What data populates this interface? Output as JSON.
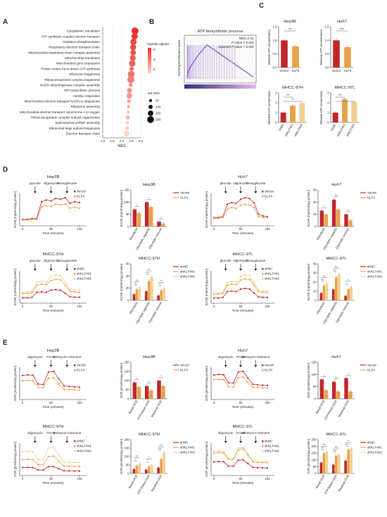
{
  "panel_labels": {
    "A": "A",
    "B": "B",
    "C": "C",
    "D": "D",
    "E": "E"
  },
  "colors": {
    "red": "#c0272d",
    "orange": "#e8a24a",
    "light_orange": "#f4cf93",
    "pale": "#fae6c3",
    "dot_low": "#fbd3c3",
    "dot_high": "#e5322d",
    "gsea_line": "#7b52c7",
    "gsea_dark": "#3a2a7a",
    "gsea_light": "#e0b8e8"
  },
  "chart_data": [
    {
      "id": "A",
      "type": "scatter",
      "xlabel": "NES",
      "xlim": [
        1.0,
        3.0
      ],
      "xticks": [
        "1.0",
        "1.5",
        "2.0",
        "2.5",
        "3.0"
      ],
      "categories": [
        "Cytoplasmic translation",
        "ATP synthesis coupled electron transport",
        "Oxidative phosphorylation",
        "Respiratory electron transport chain",
        "Mitochondrial respiratory chain complex assembly",
        "Mitochondrial translation",
        "Mitochondrial gene expression",
        "Proton motive force driven ATP synthesis",
        "Ribosome biogenesis",
        "Ribonucleoprotein complex biogenesis",
        "NADH dehydrogenase complex assembly",
        "ATP biosynthetic process",
        "Aerobic respiration",
        "Mitochondrial electron transport NADH to ubiquinone",
        "Ribosome assembly",
        "Mitochondrial electron transport cytochrome c to oxygen",
        "Ribonucleoprotein complex subunit organization",
        "Spliceosomal snRNP assembly",
        "Ribosomal large subunit biogenesis",
        "Electron transport chain"
      ],
      "x": [
        2.7,
        2.68,
        2.62,
        2.6,
        2.6,
        2.58,
        2.55,
        2.52,
        2.5,
        2.48,
        2.47,
        2.41,
        2.4,
        2.38,
        2.36,
        2.34,
        2.32,
        2.3,
        2.28,
        2.25
      ],
      "size": [
        210,
        180,
        175,
        170,
        150,
        160,
        190,
        100,
        200,
        210,
        80,
        120,
        160,
        80,
        60,
        40,
        100,
        50,
        80,
        150
      ],
      "color_legend_title": "-log10(p.adjust)",
      "color_ticks": [
        "8",
        "6",
        "4"
      ],
      "size_legend_title": "set Size",
      "size_ticks": [
        "50",
        "100",
        "150",
        "200"
      ]
    },
    {
      "id": "B",
      "type": "line",
      "title": "ATP biosynthetic process",
      "ylabel": "Running Enrichment Score",
      "annotations": [
        "NES=2.41",
        "P value < 0.001",
        "Adjusted P value < 0.001"
      ]
    },
    {
      "id": "C1",
      "type": "bar",
      "title": "Hep3B",
      "ylabel": "Relative ATP concentration",
      "categories": [
        "Vector",
        "KLF4"
      ],
      "values": [
        1.0,
        0.78
      ],
      "ylim": [
        0,
        1.5
      ],
      "yticks": [
        "0.0",
        "0.5",
        "1.0",
        "1.5"
      ],
      "sig": [
        "***"
      ]
    },
    {
      "id": "C2",
      "type": "bar",
      "title": "Huh7",
      "ylabel": "Relative ATP concentration",
      "categories": [
        "Vector",
        "KLF4"
      ],
      "values": [
        1.0,
        0.75
      ],
      "ylim": [
        0,
        1.5
      ],
      "yticks": [
        "0.0",
        "0.5",
        "1.0",
        "1.5"
      ],
      "sig": [
        "****"
      ]
    },
    {
      "id": "C3",
      "type": "bar",
      "title": "MHCC-97H",
      "ylabel": "Relative ATP concentratio",
      "categories": [
        "shNC",
        "shKLF4#1",
        "shKLF4#2"
      ],
      "values": [
        1.0,
        1.7,
        1.95
      ],
      "ylim": [
        0,
        3
      ],
      "yticks": [
        "0",
        "1",
        "2",
        "3"
      ],
      "sig": [
        "***",
        "**"
      ]
    },
    {
      "id": "C4",
      "type": "bar",
      "title": "MHCC-97L",
      "ylabel": "Relative ATP concentratio",
      "categories": [
        "shNC",
        "shKLF4#1",
        "shKLF4#2"
      ],
      "values": [
        1.0,
        2.3,
        2.1
      ],
      "ylim": [
        0,
        3
      ],
      "yticks": [
        "0",
        "1",
        "2",
        "3"
      ],
      "sig": [
        "***",
        "***"
      ]
    },
    {
      "id": "D1",
      "type": "line",
      "title": "Hep3B",
      "ylabel": "ECAR (mpH/min/μg protein)",
      "xlabel": "Time (minutes)",
      "xticks": [
        "0",
        "50",
        "100"
      ],
      "injections": [
        "glucose",
        "oligomycin",
        "deoxyglucose"
      ],
      "series": [
        {
          "name": "Vector",
          "values": [
            8,
            8,
            9,
            9,
            30,
            32,
            31,
            34,
            33,
            35,
            28,
            30,
            29
          ]
        },
        {
          "name": "KLF4",
          "values": [
            7,
            7,
            8,
            8,
            24,
            25,
            24,
            27,
            26,
            27,
            22,
            23,
            22
          ]
        }
      ]
    },
    {
      "id": "D2",
      "type": "bar",
      "title": "Hep3B",
      "ylabel": "ECAR (mpH/min/μg protein)",
      "categories": [
        "Glycolysis",
        "Glycolytic capacity",
        "Glycolytic reserve"
      ],
      "series": [
        {
          "name": "Vector",
          "values": [
            70,
            100,
            20
          ]
        },
        {
          "name": "KLF4",
          "values": [
            55,
            80,
            12
          ]
        }
      ],
      "ylim": [
        0,
        150
      ],
      "yticks": [
        "0",
        "50",
        "100",
        "150"
      ],
      "sig": [
        "*",
        "*",
        "*"
      ]
    },
    {
      "id": "D3",
      "type": "line",
      "title": "Huh7",
      "ylabel": "ECAR (mpH/min/μg protein)",
      "xlabel": "Time (minutes)",
      "xticks": [
        "0",
        "50",
        "100"
      ],
      "injections": [
        "glucose",
        "oligomycin",
        "deoxyglucose"
      ],
      "series": [
        {
          "name": "Vector",
          "values": [
            10,
            10,
            11,
            26,
            28,
            27,
            32,
            34,
            33,
            28,
            14,
            12,
            11
          ]
        },
        {
          "name": "KLF4",
          "values": [
            9,
            9,
            10,
            20,
            22,
            21,
            25,
            26,
            25,
            22,
            11,
            10,
            10
          ]
        }
      ]
    },
    {
      "id": "D4",
      "type": "bar",
      "title": "Huh7",
      "ylabel": "ECAR (mpH/min/μg protein)",
      "categories": [
        "Glycolysis",
        "Glycolytic capacity",
        "Glycolytic reserve"
      ],
      "series": [
        {
          "name": "Vector",
          "values": [
            13,
            22,
            10
          ]
        },
        {
          "name": "KLF4",
          "values": [
            10,
            14,
            5
          ]
        }
      ],
      "ylim": [
        0,
        30
      ],
      "yticks": [
        "0",
        "10",
        "20",
        "30"
      ],
      "sig": [
        "*",
        "**",
        "*"
      ]
    },
    {
      "id": "D5",
      "type": "line",
      "title": "MHCC-97H",
      "ylabel": "ECAR (mpH/min/μg protein)",
      "xlabel": "Time (minutes)",
      "xticks": [
        "0",
        "50",
        "100"
      ],
      "injections": [
        "glucose",
        "oligomycin",
        "deoxyglucose"
      ],
      "series": [
        {
          "name": "shNC",
          "values": [
            10,
            10,
            11,
            20,
            21,
            20,
            24,
            25,
            24,
            18,
            12,
            11,
            11
          ]
        },
        {
          "name": "shKLF4#1",
          "values": [
            18,
            18,
            19,
            33,
            35,
            34,
            42,
            44,
            43,
            33,
            22,
            21,
            20
          ]
        },
        {
          "name": "shKLF4#2",
          "values": [
            20,
            21,
            22,
            38,
            40,
            39,
            50,
            52,
            51,
            38,
            26,
            25,
            24
          ]
        }
      ]
    },
    {
      "id": "D6",
      "type": "bar",
      "title": "MHCC-97H",
      "ylabel": "ECAR (mpH/min/μg protein)",
      "categories": [
        "Glycolysis",
        "Glycolytic capacity",
        "Glycolytic reserve"
      ],
      "series": [
        {
          "name": "shNC",
          "values": [
            10,
            15,
            8
          ]
        },
        {
          "name": "shKLF4#1",
          "values": [
            18,
            32,
            16
          ]
        },
        {
          "name": "shKLF4#2",
          "values": [
            20,
            38,
            19
          ]
        }
      ],
      "ylim": [
        0,
        60
      ],
      "yticks": [
        "0",
        "20",
        "40",
        "60"
      ],
      "sig": [
        "**",
        "**",
        "***",
        "**",
        "**",
        "**"
      ]
    },
    {
      "id": "D7",
      "type": "line",
      "title": "MHCC-97L",
      "ylabel": "ECAR (mpH/min/μg protein)",
      "xlabel": "Time (minutes)",
      "xticks": [
        "0",
        "50",
        "100"
      ],
      "injections": [
        "glucose",
        "oligomycin",
        "deoxyglucose"
      ],
      "series": [
        {
          "name": "shNC",
          "values": [
            8,
            8,
            9,
            18,
            19,
            18,
            22,
            23,
            22,
            16,
            10,
            9,
            9
          ]
        },
        {
          "name": "shKLF4#1",
          "values": [
            14,
            14,
            15,
            28,
            30,
            29,
            36,
            38,
            37,
            28,
            18,
            17,
            17
          ]
        },
        {
          "name": "shKLF4#2",
          "values": [
            16,
            16,
            17,
            32,
            34,
            33,
            42,
            44,
            43,
            32,
            20,
            19,
            19
          ]
        }
      ]
    },
    {
      "id": "D8",
      "type": "bar",
      "title": "MHCC-97L",
      "ylabel": "ECAR (mpH/min/μg protein)",
      "categories": [
        "Glycolysis",
        "Glycolytic capacity",
        "Glycolytic reserve"
      ],
      "series": [
        {
          "name": "shNC",
          "values": [
            8,
            12,
            5
          ]
        },
        {
          "name": "shKLF4#1",
          "values": [
            16,
            25,
            12
          ]
        },
        {
          "name": "shKLF4#2",
          "values": [
            18,
            28,
            14
          ]
        }
      ],
      "ylim": [
        0,
        40
      ],
      "yticks": [
        "0",
        "10",
        "20",
        "30",
        "40"
      ],
      "sig": [
        "***",
        "**",
        "***",
        "***",
        "*",
        "*"
      ]
    },
    {
      "id": "E1",
      "type": "line",
      "title": "Hep3B",
      "ylabel": "OCR (pmol/min/μg protein)",
      "xlabel": "Time (minutes)",
      "xticks": [
        "0",
        "50",
        "100"
      ],
      "injections": [
        "oligomycin",
        "FCCP",
        "antimycin+rotenone"
      ],
      "series": [
        {
          "name": "Vector",
          "values": [
            70,
            72,
            71,
            45,
            44,
            80,
            82,
            60,
            40,
            38,
            37,
            36
          ]
        },
        {
          "name": "KLF4",
          "values": [
            55,
            56,
            55,
            35,
            34,
            62,
            64,
            46,
            30,
            29,
            28,
            28
          ]
        }
      ]
    },
    {
      "id": "E2",
      "type": "bar",
      "title": "Hep3B",
      "ylabel": "OCR (pmol/min/μg protein)",
      "categories": [
        "Basal OCR",
        "ATP-linked OCR",
        "Maximal OCR"
      ],
      "series": [
        {
          "name": "Vector",
          "values": [
            90,
            70,
            100
          ]
        },
        {
          "name": "KLF4",
          "values": [
            65,
            45,
            70
          ]
        }
      ],
      "ylim": [
        0,
        200
      ],
      "yticks": [
        "0",
        "50",
        "100",
        "150",
        "200"
      ],
      "sig": [
        "*",
        "*",
        "*"
      ]
    },
    {
      "id": "E3",
      "type": "line",
      "title": "Huh7",
      "ylabel": "OCR (pmol/min/μg protein)",
      "xlabel": "Time (minutes)",
      "xticks": [
        "0",
        "50",
        "100"
      ],
      "injections": [
        "oligomycin",
        "FCCP",
        "antimycin+rotenone"
      ],
      "series": [
        {
          "name": "Vector",
          "values": [
            80,
            82,
            81,
            55,
            54,
            90,
            92,
            70,
            50,
            48,
            47,
            46
          ]
        },
        {
          "name": "KLF4",
          "values": [
            65,
            66,
            65,
            42,
            41,
            72,
            74,
            56,
            40,
            39,
            38,
            38
          ]
        }
      ]
    },
    {
      "id": "E4",
      "type": "bar",
      "title": "Huh7",
      "ylabel": "OCR (pmol/min/μg protein)",
      "categories": [
        "Basal OCR",
        "ATP-linked OCR",
        "Maximal OCR"
      ],
      "series": [
        {
          "name": "Vector",
          "values": [
            80,
            70,
            85
          ]
        },
        {
          "name": "KLF4",
          "values": [
            35,
            30,
            30
          ]
        }
      ],
      "ylim": [
        0,
        150
      ],
      "yticks": [
        "0",
        "50",
        "100",
        "150"
      ],
      "sig": [
        "*",
        "*",
        "*"
      ]
    },
    {
      "id": "E5",
      "type": "line",
      "title": "MHCC-97H",
      "ylabel": "OCR (pmol/min/μg protein)",
      "xlabel": "Time (minutes)",
      "xticks": [
        "0",
        "50",
        "100"
      ],
      "injections": [
        "oligomycin",
        "FCCP",
        "antimycin+rotenone"
      ],
      "series": [
        {
          "name": "shNC",
          "values": [
            100,
            102,
            101,
            70,
            69,
            110,
            112,
            85,
            60,
            58,
            57,
            56
          ]
        },
        {
          "name": "shKLF4#1",
          "values": [
            200,
            205,
            202,
            140,
            138,
            240,
            245,
            180,
            120,
            118,
            116,
            115
          ]
        },
        {
          "name": "shKLF4#2",
          "values": [
            300,
            305,
            302,
            200,
            198,
            350,
            355,
            260,
            170,
            168,
            166,
            165
          ]
        }
      ]
    },
    {
      "id": "E6",
      "type": "bar",
      "title": "MHCC-97H",
      "ylabel": "OCR (pmol/min/μg protein)",
      "categories": [
        "Basal OCR",
        "ATP-linked OCR",
        "Maximal OCR"
      ],
      "series": [
        {
          "name": "shNC",
          "values": [
            25,
            22,
            35
          ]
        },
        {
          "name": "shKLF4#1",
          "values": [
            45,
            40,
            85
          ]
        },
        {
          "name": "shKLF4#2",
          "values": [
            55,
            48,
            120
          ]
        }
      ],
      "ylim": [
        0,
        200
      ],
      "yticks": [
        "0",
        "50",
        "100",
        "150",
        "200"
      ],
      "sig": [
        "*",
        "**",
        "*",
        "*",
        "***",
        "***"
      ]
    },
    {
      "id": "E7",
      "type": "line",
      "title": "MHCC-97L",
      "ylabel": "OCR (pmol/min/μg protein)",
      "xlabel": "Time (minutes)",
      "xticks": [
        "0",
        "50",
        "100"
      ],
      "injections": [
        "oligomycin",
        "FCCP",
        "antimycin+rotenone"
      ],
      "series": [
        {
          "name": "shNC",
          "values": [
            80,
            82,
            81,
            55,
            54,
            90,
            92,
            70,
            48,
            46,
            45,
            44
          ]
        },
        {
          "name": "shKLF4#1",
          "values": [
            130,
            135,
            132,
            95,
            93,
            150,
            155,
            120,
            80,
            78,
            76,
            75
          ]
        },
        {
          "name": "shKLF4#2",
          "values": [
            140,
            145,
            142,
            100,
            98,
            160,
            165,
            128,
            85,
            83,
            81,
            80
          ]
        }
      ]
    },
    {
      "id": "E8",
      "type": "bar",
      "title": "MHCC-97L",
      "ylabel": "OCR (pmol/min/μg protein)",
      "categories": [
        "Basal OCR",
        "ATP-linked OCR",
        "Maximal OCR"
      ],
      "series": [
        {
          "name": "shNC",
          "values": [
            80,
            65,
            95
          ]
        },
        {
          "name": "shKLF4#1",
          "values": [
            150,
            130,
            175
          ]
        },
        {
          "name": "shKLF4#2",
          "values": [
            155,
            135,
            180
          ]
        }
      ],
      "ylim": [
        0,
        250
      ],
      "yticks": [
        "0",
        "50",
        "100",
        "150",
        "200",
        "250"
      ],
      "sig": [
        "**",
        "***",
        "***",
        "***",
        "***",
        "**"
      ]
    }
  ]
}
